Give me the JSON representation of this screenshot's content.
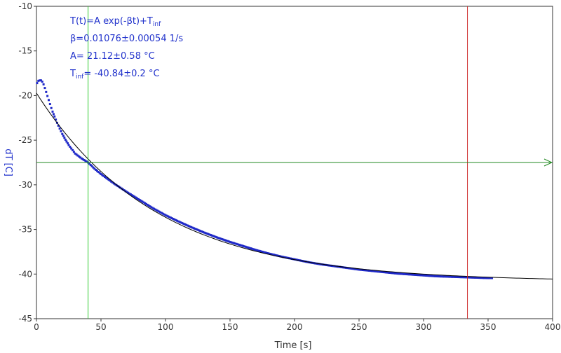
{
  "colors": {
    "data": "#1e28c8",
    "fit": "#000000",
    "cursor_v1": "#33cc33",
    "cursor_v2": "#cc2222",
    "cursor_h": "#228822",
    "axis_label": "#2233cc",
    "axis": "#333333",
    "annotation": "#2233cc"
  },
  "annotation": {
    "eq_main": "T(t)=A exp(-βt)+T",
    "eq_sub": "inf",
    "beta": "β=0.01076±0.00054 1/s",
    "a": "A= 21.12±0.58 °C",
    "tinf_main": "T",
    "tinf_sub": "inf",
    "tinf_value": "= -40.84±0.2 °C"
  },
  "chart_data": {
    "type": "scatter",
    "xlabel": "Time [s]",
    "ylabel": "dT [C]",
    "xlim": [
      0,
      400
    ],
    "ylim": [
      -45,
      -10
    ],
    "xticks": [
      0,
      50,
      100,
      150,
      200,
      250,
      300,
      350,
      400
    ],
    "yticks": [
      -10,
      -15,
      -20,
      -25,
      -30,
      -35,
      -40,
      -45
    ],
    "grid": false,
    "fit": {
      "model": "T(t)=A exp(-βt)+T_inf",
      "A": 21.12,
      "beta": 0.01076,
      "T_inf": -40.84,
      "x_range": [
        0,
        400
      ]
    },
    "series": [
      {
        "values": [
          [
            0.5,
            -18.6
          ],
          [
            1.5,
            -18.35
          ],
          [
            2.5,
            -18.3
          ],
          [
            3.5,
            -18.3
          ],
          [
            4.5,
            -18.45
          ],
          [
            5.5,
            -18.75
          ],
          [
            6.5,
            -19.15
          ],
          [
            7.5,
            -19.6
          ],
          [
            8.5,
            -20.05
          ],
          [
            9.5,
            -20.5
          ],
          [
            10.5,
            -20.95
          ],
          [
            11.5,
            -21.4
          ],
          [
            12.5,
            -21.8
          ],
          [
            14,
            -22.35
          ],
          [
            16,
            -23.05
          ],
          [
            18,
            -23.7
          ],
          [
            20,
            -24.3
          ],
          [
            22.5,
            -24.95
          ],
          [
            25,
            -25.55
          ],
          [
            30,
            -26.5
          ],
          [
            35,
            -27.05
          ],
          [
            40,
            -27.5
          ],
          [
            45,
            -28.2
          ],
          [
            50,
            -28.8
          ],
          [
            60,
            -29.85
          ],
          [
            70,
            -30.8
          ],
          [
            80,
            -31.7
          ],
          [
            90,
            -32.6
          ],
          [
            100,
            -33.4
          ],
          [
            110,
            -34.1
          ],
          [
            120,
            -34.75
          ],
          [
            130,
            -35.35
          ],
          [
            140,
            -35.9
          ],
          [
            150,
            -36.4
          ],
          [
            160,
            -36.85
          ],
          [
            170,
            -37.3
          ],
          [
            180,
            -37.7
          ],
          [
            190,
            -38.05
          ],
          [
            200,
            -38.35
          ],
          [
            210,
            -38.65
          ],
          [
            220,
            -38.9
          ],
          [
            230,
            -39.1
          ],
          [
            240,
            -39.3
          ],
          [
            250,
            -39.5
          ],
          [
            260,
            -39.65
          ],
          [
            270,
            -39.8
          ],
          [
            280,
            -39.95
          ],
          [
            290,
            -40.05
          ],
          [
            300,
            -40.15
          ],
          [
            310,
            -40.25
          ],
          [
            320,
            -40.3
          ],
          [
            330,
            -40.35
          ],
          [
            340,
            -40.4
          ],
          [
            350,
            -40.45
          ],
          [
            353,
            -40.45
          ]
        ]
      }
    ],
    "cursors": {
      "vertical": [
        40,
        334
      ],
      "horizontal": -27.5
    }
  }
}
